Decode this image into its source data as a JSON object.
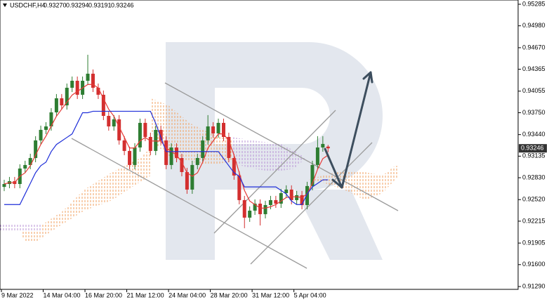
{
  "chart_data": {
    "type": "candlestick",
    "legend": {
      "symbol": "USDCHF,H4",
      "open_label": "0.93270"
    },
    "categories": [
      "9 Mar 2022",
      null,
      null,
      null,
      null,
      null,
      null,
      null,
      "14 Mar 04:00",
      null,
      null,
      null,
      null,
      null,
      null,
      null,
      "16 Mar 20:00",
      null,
      null,
      null,
      null,
      null,
      null,
      null,
      "21 Mar 12:00",
      null,
      null,
      null,
      null,
      null,
      null,
      null,
      "24 Mar 04:00",
      null,
      null,
      null,
      null,
      null,
      null,
      null,
      "28 Mar 20:00",
      null,
      null,
      null,
      null,
      null,
      null,
      null,
      "31 Mar 12:00",
      null,
      null,
      null,
      null,
      null,
      null,
      null,
      "5 Apr 04:00",
      null,
      null,
      null,
      null,
      null,
      null
    ],
    "candles": {
      "open": [
        0.927,
        0.92741,
        0.92781,
        0.92741,
        0.9296,
        0.9301,
        0.93109,
        0.93358,
        0.93507,
        0.93556,
        0.93755,
        0.93954,
        0.93854,
        0.94103,
        0.94202,
        0.94004,
        0.94202,
        0.94302,
        0.94103,
        0.94004,
        0.93705,
        0.93556,
        0.93656,
        0.93358,
        0.93209,
        0.9301,
        0.93258,
        0.93606,
        0.93407,
        0.93209,
        0.93507,
        0.93358,
        0.9301,
        0.93258,
        0.93109,
        0.9291,
        0.92662,
        0.9301,
        0.93109,
        0.93358,
        0.93556,
        0.93457,
        0.93606,
        0.93407,
        0.93109,
        0.92861,
        0.92513,
        0.92265,
        0.92364,
        0.92463,
        0.92314,
        0.92443,
        0.92513,
        0.92463,
        0.92612,
        0.92662,
        0.92513,
        0.92583,
        0.92443,
        0.92712,
        0.9301,
        0.93258,
        0.9327
      ],
      "high": [
        0.92801,
        0.92841,
        0.92841,
        0.9302,
        0.9307,
        0.93169,
        0.93418,
        0.93567,
        0.93616,
        0.93815,
        0.94014,
        0.94014,
        0.94163,
        0.94262,
        0.94262,
        0.94262,
        0.9457,
        0.94362,
        0.94163,
        0.94064,
        0.93765,
        0.93716,
        0.93716,
        0.93418,
        0.93269,
        0.93318,
        0.93666,
        0.93666,
        0.93467,
        0.93567,
        0.93567,
        0.93418,
        0.93318,
        0.93318,
        0.93169,
        0.9297,
        0.9307,
        0.93169,
        0.93418,
        0.93716,
        0.93616,
        0.93666,
        0.93666,
        0.93467,
        0.93169,
        0.92921,
        0.92573,
        0.92424,
        0.92523,
        0.92523,
        0.92503,
        0.92573,
        0.92573,
        0.92672,
        0.92722,
        0.92722,
        0.92643,
        0.92643,
        0.92772,
        0.9307,
        0.93418,
        0.93418,
        0.93294
      ],
      "low": [
        0.9264,
        0.92681,
        0.92681,
        0.92681,
        0.929,
        0.9295,
        0.93049,
        0.93298,
        0.93447,
        0.93496,
        0.93695,
        0.93794,
        0.93794,
        0.94043,
        0.93944,
        0.93944,
        0.94142,
        0.94043,
        0.93944,
        0.93645,
        0.93496,
        0.93496,
        0.93298,
        0.93149,
        0.9295,
        0.9295,
        0.93198,
        0.93347,
        0.93149,
        0.93149,
        0.93298,
        0.9295,
        0.9295,
        0.93049,
        0.9285,
        0.92602,
        0.92602,
        0.9295,
        0.93049,
        0.93298,
        0.93397,
        0.93397,
        0.93347,
        0.93049,
        0.92801,
        0.92453,
        0.92115,
        0.92205,
        0.92304,
        0.92154,
        0.92254,
        0.92383,
        0.92403,
        0.92403,
        0.92552,
        0.92453,
        0.92453,
        0.92383,
        0.92383,
        0.92652,
        0.9295,
        0.93198,
        0.93191
      ],
      "close": [
        0.92741,
        0.92781,
        0.92741,
        0.9296,
        0.9301,
        0.93109,
        0.93358,
        0.93507,
        0.93556,
        0.93755,
        0.93954,
        0.93854,
        0.94103,
        0.94202,
        0.94004,
        0.94202,
        0.94302,
        0.94103,
        0.94004,
        0.93705,
        0.93556,
        0.93656,
        0.93358,
        0.93209,
        0.9301,
        0.93258,
        0.93606,
        0.93407,
        0.93209,
        0.93507,
        0.93358,
        0.9301,
        0.93258,
        0.93109,
        0.9291,
        0.92662,
        0.9301,
        0.93109,
        0.93358,
        0.93556,
        0.93457,
        0.93606,
        0.93407,
        0.93109,
        0.92861,
        0.92513,
        0.92265,
        0.92364,
        0.92463,
        0.92314,
        0.92443,
        0.92513,
        0.92463,
        0.92612,
        0.92662,
        0.92513,
        0.92583,
        0.92443,
        0.92712,
        0.9301,
        0.93258,
        0.93308,
        0.93246
      ],
      "up_color": "#2e7d32",
      "down_color": "#d32f2f"
    },
    "series": [
      {
        "color": "#e53935",
        "values": [
          0.92741,
          0.9276,
          0.9276,
          0.9285,
          0.929,
          0.93,
          0.9315,
          0.933,
          0.9342,
          0.9356,
          0.937,
          0.938,
          0.939,
          0.94,
          0.9405,
          0.941,
          0.9415,
          0.9415,
          0.941,
          0.9395,
          0.938,
          0.937,
          0.9355,
          0.934,
          0.9325,
          0.9325,
          0.9335,
          0.934,
          0.9335,
          0.9335,
          0.9335,
          0.9325,
          0.932,
          0.9315,
          0.9305,
          0.929,
          0.9285,
          0.929,
          0.9305,
          0.9325,
          0.9335,
          0.9345,
          0.9345,
          0.9335,
          0.9315,
          0.929,
          0.9265,
          0.925,
          0.9245,
          0.924,
          0.924,
          0.9242,
          0.9245,
          0.925,
          0.9255,
          0.9256,
          0.9256,
          0.9255,
          0.926,
          0.9275,
          0.9295,
          0.931,
          0.9315
        ]
      },
      {
        "color": "#1f2fd9",
        "values": [
          0.9245,
          0.9245,
          0.9245,
          0.9245,
          0.926,
          0.9275,
          0.929,
          0.93,
          0.9305,
          0.932,
          0.933,
          0.9335,
          0.934,
          0.9345,
          0.936,
          0.9375,
          0.9375,
          0.9377,
          0.9377,
          0.9377,
          0.9377,
          0.9377,
          0.9377,
          0.9377,
          0.9377,
          0.9377,
          0.9377,
          0.9377,
          0.9377,
          0.936,
          0.934,
          0.932,
          0.932,
          0.932,
          0.932,
          0.932,
          0.932,
          0.932,
          0.932,
          0.932,
          0.932,
          0.932,
          0.931,
          0.93,
          0.929,
          0.9285,
          0.927,
          0.927,
          0.927,
          0.927,
          0.927,
          0.927,
          0.927,
          0.9265,
          0.926,
          0.925,
          0.9245,
          0.9245,
          0.926,
          0.927,
          0.9275,
          0.928,
          0.928
        ]
      }
    ],
    "ylim": [
      0.9125,
      0.95345
    ],
    "yticks": [
      0.95285,
      {
        "value": 0.9498,
        "label": "0.94980"
      },
      {
        "value": 0.9467,
        "label": "0.94670"
      },
      0.94365,
      0.94055,
      {
        "value": 0.9375,
        "label": "0.93750"
      },
      {
        "value": 0.9344,
        "label": "0.93440"
      },
      0.93135,
      {
        "value": 0.9283,
        "label": "0.92830"
      },
      {
        "value": 0.9252,
        "label": "0.92520"
      },
      0.92215,
      0.91905,
      {
        "value": 0.916,
        "label": "0.91600"
      },
      {
        "value": 0.9129,
        "label": "0.91290"
      }
    ],
    "grid": false
  }
}
